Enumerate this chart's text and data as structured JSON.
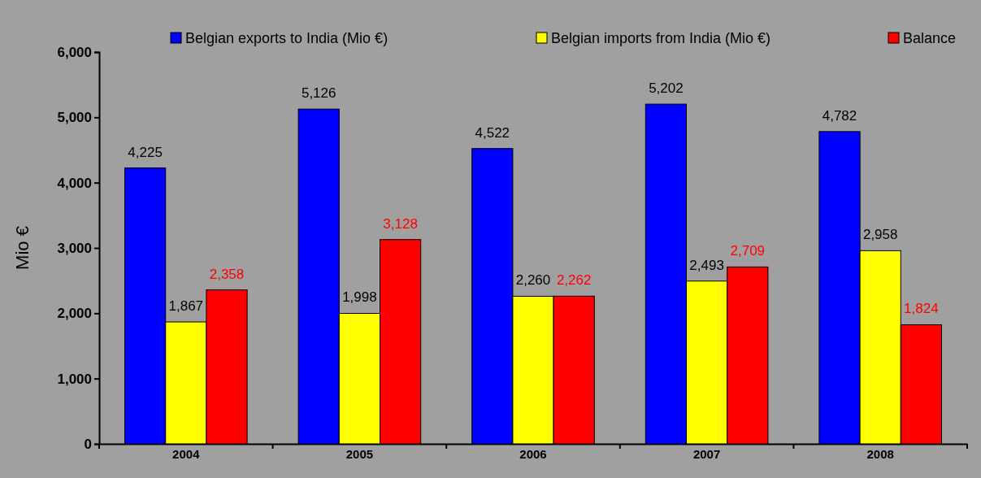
{
  "chart_data": {
    "type": "bar",
    "ylabel": "Mio €",
    "categories": [
      "2004",
      "2005",
      "2006",
      "2007",
      "2008"
    ],
    "series": [
      {
        "name": "Belgian exports to India (Mio €)",
        "color": "#0000ff",
        "values": [
          4225,
          5126,
          4522,
          5202,
          4782
        ],
        "value_labels": [
          "4,225",
          "5,126",
          "4,522",
          "5,202",
          "4,782"
        ]
      },
      {
        "name": "Belgian imports from India (Mio €)",
        "color": "#ffff00",
        "values": [
          1867,
          1998,
          2260,
          2493,
          2958
        ],
        "value_labels": [
          "1,867",
          "1,998",
          "2,260",
          "2,493",
          "2,958"
        ]
      },
      {
        "name": "Balance",
        "color": "#ff0000",
        "values": [
          2358,
          3128,
          2262,
          2709,
          1824
        ],
        "value_labels": [
          "2,358",
          "3,128",
          "2,262",
          "2,709",
          "1,824"
        ]
      }
    ],
    "ylim": [
      0,
      6000
    ],
    "yticks": [
      {
        "value": 0,
        "label": "0"
      },
      {
        "value": 1000,
        "label": "1,000"
      },
      {
        "value": 2000,
        "label": "2,000"
      },
      {
        "value": 3000,
        "label": "3,000"
      },
      {
        "value": 4000,
        "label": "4,000"
      },
      {
        "value": 5000,
        "label": "5,000"
      },
      {
        "value": 6000,
        "label": "6,000"
      }
    ],
    "grid": false,
    "legend": "top"
  }
}
